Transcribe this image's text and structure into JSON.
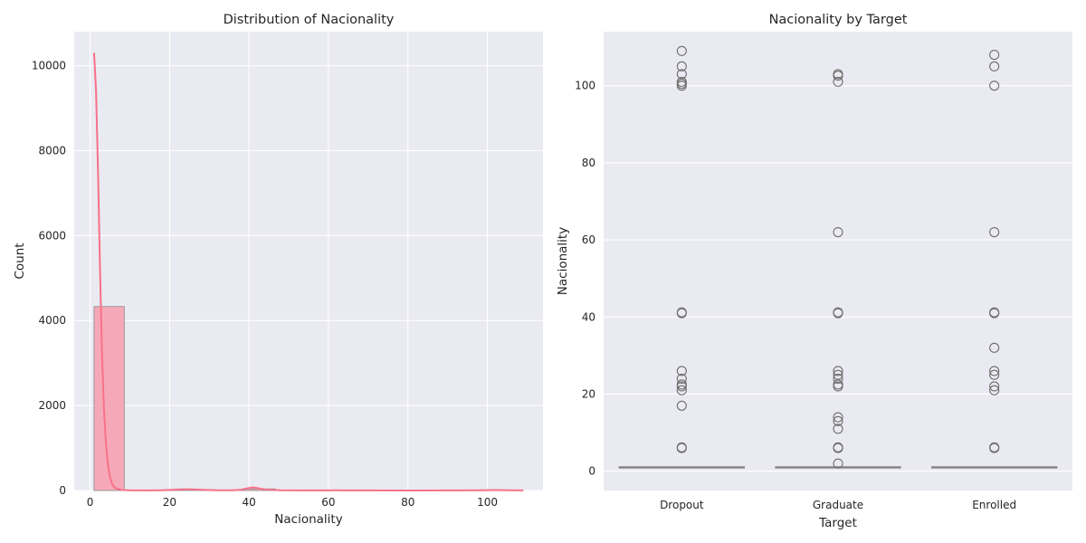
{
  "chart_data": [
    {
      "type": "histogram",
      "title": "Distribution of Nacionality",
      "xlabel": "Nacionality",
      "ylabel": "Count",
      "xlim": [
        -4,
        114
      ],
      "ylim": [
        0,
        10800
      ],
      "xticks": [
        0,
        20,
        40,
        60,
        80,
        100
      ],
      "yticks": [
        0,
        2000,
        4000,
        6000,
        8000,
        10000
      ],
      "bins": [
        {
          "x0": 1,
          "x1": 8.6,
          "count": 4330
        },
        {
          "x0": 8.6,
          "x1": 16.2,
          "count": 4
        },
        {
          "x0": 16.2,
          "x1": 23.8,
          "count": 15
        },
        {
          "x0": 23.8,
          "x1": 31.4,
          "count": 18
        },
        {
          "x0": 31.4,
          "x1": 39.0,
          "count": 2
        },
        {
          "x0": 39.0,
          "x1": 46.6,
          "count": 38
        },
        {
          "x0": 46.6,
          "x1": 54.2,
          "count": 0
        },
        {
          "x0": 54.2,
          "x1": 61.8,
          "count": 0
        },
        {
          "x0": 61.8,
          "x1": 69.4,
          "count": 2
        },
        {
          "x0": 69.4,
          "x1": 77.0,
          "count": 0
        },
        {
          "x0": 77.0,
          "x1": 84.6,
          "count": 0
        },
        {
          "x0": 84.6,
          "x1": 92.2,
          "count": 0
        },
        {
          "x0": 92.2,
          "x1": 99.8,
          "count": 0
        },
        {
          "x0": 99.8,
          "x1": 109,
          "count": 11
        }
      ],
      "kde": {
        "x": [
          1,
          1.5,
          2,
          2.5,
          3,
          3.5,
          4,
          4.5,
          5,
          5.5,
          6,
          7,
          8,
          10,
          15,
          18,
          20,
          22,
          24,
          26,
          28,
          32,
          36,
          38,
          40,
          41,
          42,
          44,
          48,
          55,
          60,
          62,
          64,
          70,
          80,
          90,
          98,
          100,
          102,
          104,
          106,
          109
        ],
        "y": [
          10300,
          9400,
          7500,
          5200,
          3200,
          1900,
          1100,
          600,
          310,
          160,
          80,
          30,
          12,
          5,
          3,
          6,
          14,
          24,
          30,
          28,
          18,
          6,
          6,
          20,
          60,
          75,
          60,
          25,
          4,
          2,
          3,
          5,
          3,
          2,
          1,
          2,
          5,
          9,
          10,
          8,
          5,
          2
        ]
      },
      "color": "#f77189",
      "bar_color": "#f5a9b8",
      "grid": true,
      "background": "#eaeaf2"
    },
    {
      "type": "boxplot",
      "title": "Nacionality by Target",
      "xlabel": "Target",
      "ylabel": "Nacionality",
      "categories": [
        "Dropout",
        "Graduate",
        "Enrolled"
      ],
      "ylim": [
        -5,
        114
      ],
      "yticks": [
        0,
        20,
        40,
        60,
        80,
        100
      ],
      "boxes": [
        {
          "q1": 1,
          "median": 1,
          "q3": 1,
          "whislo": 1,
          "whishi": 1,
          "fliers": [
            109,
            105,
            103,
            101,
            100.5,
            100,
            41.2,
            41,
            26,
            24,
            22.5,
            22,
            21,
            17,
            6.2,
            6
          ]
        },
        {
          "q1": 1,
          "median": 1,
          "q3": 1,
          "whislo": 1,
          "whishi": 1,
          "fliers": [
            103,
            102.6,
            101,
            62,
            41.2,
            41,
            26,
            25,
            24,
            22.5,
            22,
            14,
            13,
            11,
            6.2,
            6,
            2
          ]
        },
        {
          "q1": 1,
          "median": 1,
          "q3": 1,
          "whislo": 1,
          "whishi": 1,
          "fliers": [
            108,
            105,
            100,
            62,
            41.2,
            41,
            32,
            26,
            25,
            22,
            21,
            6.2,
            6
          ]
        }
      ],
      "color": "#828282",
      "grid": true,
      "background": "#eaeaf2"
    }
  ]
}
